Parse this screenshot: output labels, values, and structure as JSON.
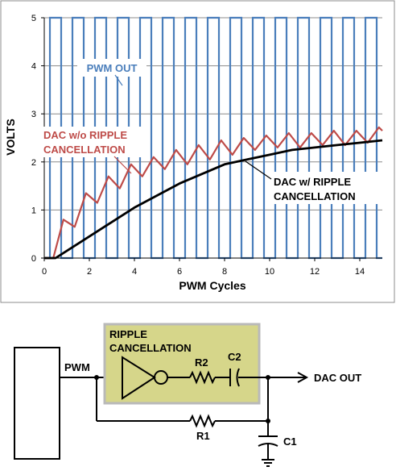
{
  "chart_data": {
    "type": "line",
    "xlabel": "PWM Cycles",
    "ylabel": "VOLTS",
    "xlim": [
      0,
      15
    ],
    "ylim": [
      0,
      5
    ],
    "xticks": [
      "0",
      "2",
      "4",
      "6",
      "8",
      "10",
      "12",
      "14"
    ],
    "yticks": [
      "0",
      "1",
      "2",
      "3",
      "4",
      "5"
    ],
    "grid": "horizontal",
    "pwm_duty": 0.5,
    "pwm_high": 5,
    "pwm_low": 0,
    "series": [
      {
        "name": "PWM OUT",
        "color": "#4a7ebb",
        "kind": "square",
        "note_x": [
          2.5,
          3.6
        ]
      },
      {
        "name": "DAC w/o RIPPLE CANCELLATION",
        "color": "#be4b48",
        "x": [
          0,
          0.4,
          0.85,
          1.35,
          1.85,
          2.35,
          2.85,
          3.35,
          3.85,
          4.35,
          4.85,
          5.35,
          5.85,
          6.35,
          6.85,
          7.35,
          7.85,
          8.35,
          8.85,
          9.35,
          9.85,
          10.35,
          10.85,
          11.35,
          11.85,
          12.35,
          12.85,
          13.35,
          13.85,
          14.35,
          14.85,
          15
        ],
        "y": [
          0,
          0,
          0.8,
          0.65,
          1.35,
          1.15,
          1.7,
          1.45,
          1.95,
          1.7,
          2.1,
          1.85,
          2.25,
          1.95,
          2.35,
          2.05,
          2.45,
          2.15,
          2.5,
          2.25,
          2.55,
          2.3,
          2.6,
          2.3,
          2.6,
          2.35,
          2.65,
          2.35,
          2.65,
          2.4,
          2.72,
          2.65
        ]
      },
      {
        "name": "DAC w/ RIPPLE CANCELLATION",
        "color": "#000000",
        "x": [
          0,
          0.5,
          1,
          2,
          3,
          4,
          5,
          6,
          7,
          8,
          9,
          10,
          11,
          12,
          13,
          14,
          15
        ],
        "y": [
          0,
          0,
          0.15,
          0.45,
          0.75,
          1.05,
          1.3,
          1.55,
          1.75,
          1.95,
          2.05,
          2.15,
          2.25,
          2.3,
          2.35,
          2.4,
          2.45
        ]
      }
    ],
    "annotations": [
      "PWM OUT",
      "DAC w/o RIPPLE CANCELLATION",
      "DAC w/ RIPPLE CANCELLATION"
    ]
  },
  "chart_text": {
    "pwm_out": "PWM OUT",
    "dac_wo_line1": "DAC w/o RIPPLE",
    "dac_wo_line2": "CANCELLATION",
    "dac_w_line1": "DAC w/ RIPPLE",
    "dac_w_line2": "CANCELLATION"
  },
  "schematic": {
    "pwm_label": "PWM",
    "box_title_line1": "RIPPLE",
    "box_title_line2": "CANCELLATION",
    "r2_label": "R2",
    "c2_label": "C2",
    "r1_label": "R1",
    "c1_label": "C1",
    "dac_out_label": "DAC OUT",
    "box_fill": "#d6d68a",
    "box_border": "#b9b9b9"
  }
}
